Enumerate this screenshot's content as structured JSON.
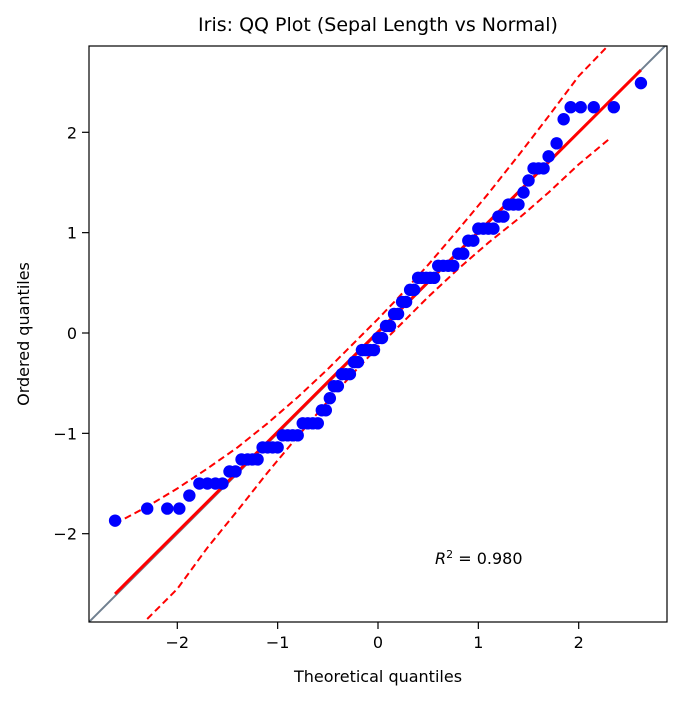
{
  "chart_data": {
    "type": "scatter",
    "title": "Iris: QQ Plot (Sepal Length vs Normal)",
    "xlabel": "Theoretical quantiles",
    "ylabel": "Ordered quantiles",
    "xlim": [
      -2.88,
      2.88
    ],
    "ylim": [
      -2.88,
      2.86
    ],
    "grid": false,
    "x_ticks": [
      -2,
      -1,
      0,
      1,
      2
    ],
    "y_ticks": [
      -2,
      -1,
      0,
      1,
      2
    ],
    "x_tick_labels": [
      "−2",
      "−1",
      "0",
      "1",
      "2"
    ],
    "y_tick_labels": [
      "−2",
      "−1",
      "0",
      "1",
      "2"
    ],
    "annotation": {
      "prefix": "R",
      "exp": "2",
      "suffix": " = 0.980"
    },
    "colors": {
      "points": "#0000ff",
      "fit": "#ff0000",
      "band": "#ff0000",
      "reference": "#708090"
    },
    "series": [
      {
        "type": "scatter",
        "x": [
          -2.62,
          -2.3,
          -2.1,
          -1.98,
          -1.88,
          -1.78,
          -1.7,
          -1.62,
          -1.55,
          -1.48,
          -1.42,
          -1.36,
          -1.3,
          -1.25,
          -1.2,
          -1.15,
          -1.1,
          -1.05,
          -1.0,
          -0.95,
          -0.9,
          -0.85,
          -0.8,
          -0.75,
          -0.7,
          -0.65,
          -0.6,
          -0.56,
          -0.52,
          -0.48,
          -0.44,
          -0.4,
          -0.36,
          -0.32,
          -0.28,
          -0.24,
          -0.2,
          -0.16,
          -0.12,
          -0.08,
          -0.04,
          0.0,
          0.04,
          0.08,
          0.12,
          0.16,
          0.2,
          0.24,
          0.28,
          0.32,
          0.36,
          0.4,
          0.44,
          0.48,
          0.52,
          0.56,
          0.6,
          0.65,
          0.7,
          0.75,
          0.8,
          0.85,
          0.9,
          0.95,
          1.0,
          1.05,
          1.1,
          1.15,
          1.2,
          1.25,
          1.3,
          1.35,
          1.4,
          1.45,
          1.5,
          1.55,
          1.6,
          1.65,
          1.7,
          1.78,
          1.85,
          1.92,
          2.02,
          2.15,
          2.35,
          2.62
        ],
        "y": [
          -1.87,
          -1.75,
          -1.75,
          -1.75,
          -1.62,
          -1.5,
          -1.5,
          -1.5,
          -1.5,
          -1.38,
          -1.38,
          -1.26,
          -1.26,
          -1.26,
          -1.26,
          -1.14,
          -1.14,
          -1.14,
          -1.14,
          -1.02,
          -1.02,
          -1.02,
          -1.02,
          -0.9,
          -0.9,
          -0.9,
          -0.9,
          -0.77,
          -0.77,
          -0.65,
          -0.53,
          -0.53,
          -0.41,
          -0.41,
          -0.41,
          -0.29,
          -0.29,
          -0.17,
          -0.17,
          -0.17,
          -0.17,
          -0.05,
          -0.05,
          0.07,
          0.07,
          0.19,
          0.19,
          0.31,
          0.31,
          0.43,
          0.43,
          0.55,
          0.55,
          0.55,
          0.55,
          0.55,
          0.67,
          0.67,
          0.67,
          0.67,
          0.79,
          0.79,
          0.92,
          0.92,
          1.04,
          1.04,
          1.04,
          1.04,
          1.16,
          1.16,
          1.28,
          1.28,
          1.28,
          1.4,
          1.52,
          1.64,
          1.64,
          1.64,
          1.76,
          1.89,
          2.13,
          2.25,
          2.25,
          2.25,
          2.25,
          2.49
        ]
      },
      {
        "type": "line",
        "role": "fit",
        "x": [
          -2.62,
          2.62
        ],
        "y": [
          -2.6,
          2.62
        ]
      },
      {
        "type": "line",
        "role": "upper-band",
        "x": [
          -2.62,
          -2.3,
          -2.0,
          -1.7,
          -1.4,
          -1.1,
          -0.8,
          -0.5,
          -0.2,
          0.0,
          0.2,
          0.5,
          0.8,
          1.1,
          1.4,
          1.7,
          2.0,
          2.3,
          2.62
        ],
        "y": [
          -1.9,
          -1.73,
          -1.55,
          -1.35,
          -1.14,
          -0.9,
          -0.64,
          -0.36,
          -0.06,
          0.14,
          0.35,
          0.68,
          1.03,
          1.39,
          1.77,
          2.16,
          2.56,
          2.87,
          3.2
        ]
      },
      {
        "type": "line",
        "role": "lower-band",
        "x": [
          -2.3,
          -2.0,
          -1.7,
          -1.4,
          -1.1,
          -0.8,
          -0.5,
          -0.2,
          0.0,
          0.2,
          0.5,
          0.8,
          1.1,
          1.4,
          1.7,
          2.0,
          2.3
        ],
        "y": [
          -2.85,
          -2.55,
          -2.14,
          -1.77,
          -1.39,
          -1.03,
          -0.68,
          -0.35,
          -0.14,
          0.06,
          0.36,
          0.64,
          0.9,
          1.14,
          1.4,
          1.68,
          1.93
        ]
      }
    ]
  }
}
